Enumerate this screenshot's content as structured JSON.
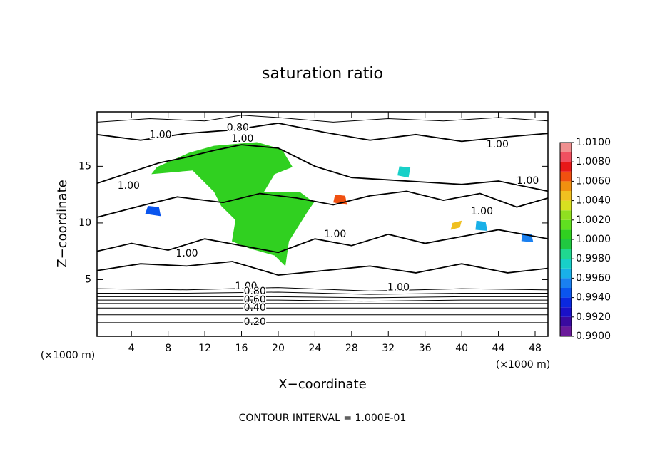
{
  "chart_data": {
    "type": "contour",
    "title": "saturation ratio",
    "xlabel": "X−coordinate",
    "ylabel": "Z−coordinate",
    "x_unit": "(×1000 m)",
    "footer": "CONTOUR INTERVAL = 1.000E-01",
    "xlim": [
      0.25,
      49.4
    ],
    "ylim": [
      0,
      19.8
    ],
    "xticks": [
      4,
      8,
      12,
      16,
      20,
      24,
      28,
      32,
      36,
      40,
      44,
      48
    ],
    "yticks": [
      5,
      10,
      15
    ],
    "line_color": "#000000",
    "colorbar": {
      "levels": [
        0.99,
        0.991,
        0.992,
        0.993,
        0.994,
        0.995,
        0.996,
        0.997,
        0.998,
        0.999,
        1.0,
        1.001,
        1.002,
        1.003,
        1.004,
        1.005,
        1.006,
        1.007,
        1.008,
        1.009,
        1.01
      ],
      "colors": [
        "#6a1a9a",
        "#3a0aa0",
        "#1a10c8",
        "#0a28e0",
        "#0a55ee",
        "#1a80f0",
        "#19b0e8",
        "#18d0c8",
        "#20d890",
        "#20c840",
        "#30d020",
        "#60e020",
        "#90e020",
        "#d8e020",
        "#f0c020",
        "#f09010",
        "#f05010",
        "#e81818",
        "#f05060",
        "#f09090"
      ],
      "ticks": [
        {
          "value": 0.99,
          "label": "0.9900"
        },
        {
          "value": 0.992,
          "label": "0.9920"
        },
        {
          "value": 0.994,
          "label": "0.9940"
        },
        {
          "value": 0.996,
          "label": "0.9960"
        },
        {
          "value": 0.998,
          "label": "0.9980"
        },
        {
          "value": 1.0,
          "label": "1.0000"
        },
        {
          "value": 1.002,
          "label": "1.0020"
        },
        {
          "value": 1.004,
          "label": "1.0040"
        },
        {
          "value": 1.006,
          "label": "1.0060"
        },
        {
          "value": 1.008,
          "label": "1.0080"
        },
        {
          "value": 1.01,
          "label": "1.0100"
        }
      ]
    },
    "patches": [
      {
        "value": 1.0003,
        "x": [
          6.78,
          10.28,
          13.0,
          17.67,
          20.39,
          21.56,
          19.61,
          18.45,
          22.33,
          23.89,
          23.11,
          21.17,
          20.78,
          19.61,
          16.89,
          14.95,
          15.34,
          13.78,
          13.0,
          10.67,
          6.17
        ],
        "y": [
          14.94,
          16.19,
          16.81,
          17.13,
          16.5,
          14.94,
          14.31,
          12.75,
          12.75,
          11.81,
          10.88,
          8.38,
          6.19,
          7.13,
          7.75,
          8.38,
          10.25,
          11.5,
          12.75,
          14.63,
          14.31
        ]
      },
      {
        "value": 0.9975,
        "x": [
          33.0,
          34.2,
          34.4,
          33.2
        ],
        "y": [
          14.2,
          14.0,
          14.9,
          15.0
        ]
      },
      {
        "value": 0.9945,
        "x": [
          5.5,
          7.2,
          7.0,
          5.8
        ],
        "y": [
          10.8,
          10.6,
          11.4,
          11.5
        ]
      },
      {
        "value": 1.0045,
        "x": [
          38.8,
          39.8,
          40.0,
          39.0
        ],
        "y": [
          9.4,
          9.6,
          10.2,
          10.0
        ]
      },
      {
        "value": 0.9965,
        "x": [
          41.5,
          42.8,
          42.6,
          41.6
        ],
        "y": [
          9.4,
          9.3,
          10.1,
          10.2
        ]
      },
      {
        "value": 1.0065,
        "x": [
          26.0,
          27.5,
          27.3,
          26.2
        ],
        "y": [
          11.8,
          11.6,
          12.4,
          12.5
        ]
      },
      {
        "value": 0.9955,
        "x": [
          46.5,
          47.8,
          47.6,
          46.6
        ],
        "y": [
          8.4,
          8.3,
          9.0,
          9.1
        ]
      }
    ],
    "contours": [
      {
        "level": 1.0,
        "x": [
          0.25,
          5,
          10,
          15,
          20,
          25,
          30,
          35,
          40,
          45,
          49.4
        ],
        "y": [
          17.8,
          17.3,
          17.9,
          18.2,
          18.8,
          18.0,
          17.3,
          17.8,
          17.2,
          17.6,
          17.9
        ]
      },
      {
        "level": 1.0,
        "x": [
          0.25,
          4,
          7,
          10,
          13,
          16,
          20,
          24,
          28,
          32,
          36,
          40,
          44,
          49.4
        ],
        "y": [
          13.5,
          14.5,
          15.3,
          15.8,
          16.4,
          16.9,
          16.6,
          15.0,
          14.0,
          13.8,
          13.6,
          13.4,
          13.7,
          12.8
        ]
      },
      {
        "level": 1.0,
        "x": [
          0.25,
          5,
          9,
          14,
          18,
          22,
          26,
          30,
          34,
          38,
          42,
          46,
          49.4
        ],
        "y": [
          10.5,
          11.5,
          12.3,
          11.8,
          12.6,
          12.2,
          11.6,
          12.4,
          12.8,
          12.0,
          12.6,
          11.4,
          12.2
        ]
      },
      {
        "level": 1.0,
        "x": [
          0.25,
          4,
          8,
          12,
          16,
          20,
          24,
          28,
          32,
          36,
          40,
          44,
          49.4
        ],
        "y": [
          7.5,
          8.2,
          7.6,
          8.6,
          8.0,
          7.4,
          8.6,
          8.0,
          9.0,
          8.2,
          8.8,
          9.4,
          8.6
        ]
      },
      {
        "level": 1.0,
        "x": [
          0.25,
          5,
          10,
          15,
          20,
          25,
          30,
          35,
          40,
          45,
          49.4
        ],
        "y": [
          5.8,
          6.4,
          6.2,
          6.6,
          5.4,
          5.8,
          6.2,
          5.6,
          6.4,
          5.6,
          6.0
        ]
      },
      {
        "level": 0.8,
        "x": [
          0.25,
          6,
          12,
          16,
          20,
          26,
          32,
          38,
          44,
          49.4
        ],
        "y": [
          18.9,
          19.2,
          19.0,
          19.5,
          19.3,
          18.9,
          19.2,
          19.0,
          19.3,
          19.0
        ]
      },
      {
        "level": 0.9,
        "x": [
          0.25,
          10,
          20,
          30,
          40,
          49.4
        ],
        "y": [
          4.2,
          4.1,
          4.3,
          4.0,
          4.2,
          4.1
        ]
      },
      {
        "level": 0.8,
        "x": [
          0.25,
          10,
          20,
          30,
          40,
          49.4
        ],
        "y": [
          3.8,
          3.8,
          3.9,
          3.7,
          3.8,
          3.8
        ]
      },
      {
        "level": 0.7,
        "x": [
          0.25,
          10,
          20,
          30,
          40,
          49.4
        ],
        "y": [
          3.5,
          3.5,
          3.5,
          3.4,
          3.5,
          3.5
        ]
      },
      {
        "level": 0.6,
        "x": [
          0.25,
          10,
          20,
          30,
          40,
          49.4
        ],
        "y": [
          3.2,
          3.2,
          3.2,
          3.1,
          3.2,
          3.2
        ]
      },
      {
        "level": 0.5,
        "x": [
          0.25,
          10,
          20,
          30,
          40,
          49.4
        ],
        "y": [
          2.9,
          2.9,
          2.9,
          2.9,
          2.9,
          2.9
        ]
      },
      {
        "level": 0.4,
        "x": [
          0.25,
          10,
          20,
          30,
          40,
          49.4
        ],
        "y": [
          2.5,
          2.5,
          2.5,
          2.5,
          2.5,
          2.5
        ]
      },
      {
        "level": 0.3,
        "x": [
          0.25,
          10,
          20,
          30,
          40,
          49.4
        ],
        "y": [
          1.9,
          1.9,
          1.9,
          1.9,
          1.9,
          1.9
        ]
      },
      {
        "level": 0.2,
        "x": [
          0.25,
          10,
          20,
          30,
          40,
          49.4
        ],
        "y": [
          1.2,
          1.2,
          1.2,
          1.2,
          1.2,
          1.2
        ]
      }
    ],
    "contour_labels": [
      {
        "text": "1.00",
        "x": 7.17,
        "y": 17.75
      },
      {
        "text": "0.80",
        "x": 15.6,
        "y": 18.4
      },
      {
        "text": "1.00",
        "x": 16.1,
        "y": 17.4
      },
      {
        "text": "1.00",
        "x": 3.7,
        "y": 13.25
      },
      {
        "text": "1.00",
        "x": 43.9,
        "y": 16.9
      },
      {
        "text": "1.00",
        "x": 47.2,
        "y": 13.7
      },
      {
        "text": "1.00",
        "x": 42.2,
        "y": 11.0
      },
      {
        "text": "1.00",
        "x": 26.2,
        "y": 9.0
      },
      {
        "text": "1.00",
        "x": 10.05,
        "y": 7.3
      },
      {
        "text": "1.00",
        "x": 33.1,
        "y": 4.3
      },
      {
        "text": "1.00",
        "x": 16.5,
        "y": 4.4
      },
      {
        "text": "0.80",
        "x": 17.45,
        "y": 3.95
      },
      {
        "text": "0.60",
        "x": 17.45,
        "y": 3.2
      },
      {
        "text": "0.40",
        "x": 17.45,
        "y": 2.5
      },
      {
        "text": "0.20",
        "x": 17.45,
        "y": 1.25
      }
    ]
  }
}
